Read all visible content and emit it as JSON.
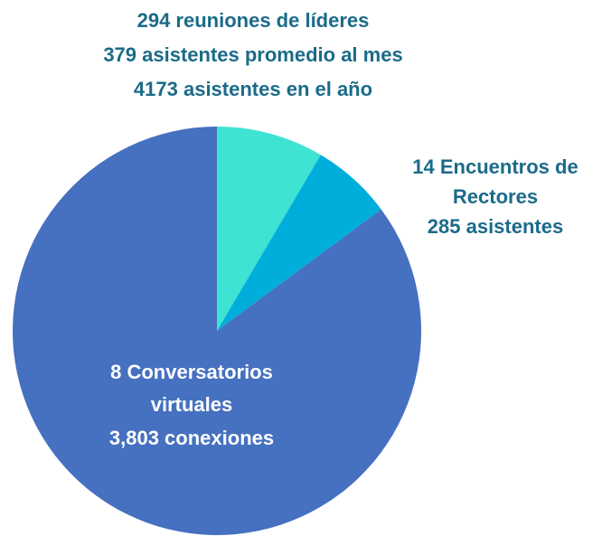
{
  "chart_data": {
    "type": "pie",
    "labels": [
      [
        "294 reuniones de líderes",
        "379  asistentes promedio al mes",
        "4173 asistentes en el año"
      ],
      [
        "14 Encuentros de",
        "Rectores",
        "285 asistentes"
      ],
      [
        "8 Conversatorios",
        "virtuales",
        "3,803 conexiones"
      ]
    ],
    "values": [
      379,
      285,
      3803
    ],
    "colors": [
      "#3ee3d3",
      "#00aedb",
      "#4670c0"
    ],
    "label_colors": [
      "#1b6b89",
      "#1b6b89",
      "#ffffff"
    ]
  }
}
